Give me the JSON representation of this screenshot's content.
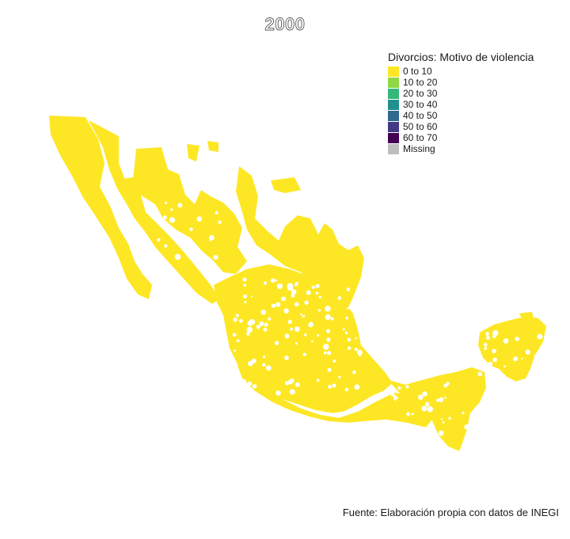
{
  "title": "2000",
  "map": {
    "region": "Mexico",
    "fill_color": "#FDE725",
    "unit_name": "municipio"
  },
  "legend": {
    "title": "Divorcios: Motivo de violencia",
    "items": [
      {
        "label": "0 to 10",
        "color": "#FDE725"
      },
      {
        "label": "10 to 20",
        "color": "#8FD744"
      },
      {
        "label": "20 to 30",
        "color": "#35B779"
      },
      {
        "label": "30 to 40",
        "color": "#21908C"
      },
      {
        "label": "40 to 50",
        "color": "#31688E"
      },
      {
        "label": "50 to 60",
        "color": "#443A83"
      },
      {
        "label": "60 to 70",
        "color": "#440154"
      },
      {
        "label": "Missing",
        "color": "#BEBEBE"
      }
    ]
  },
  "caption": "Fuente: Elaboración propia con datos de INEGI"
}
